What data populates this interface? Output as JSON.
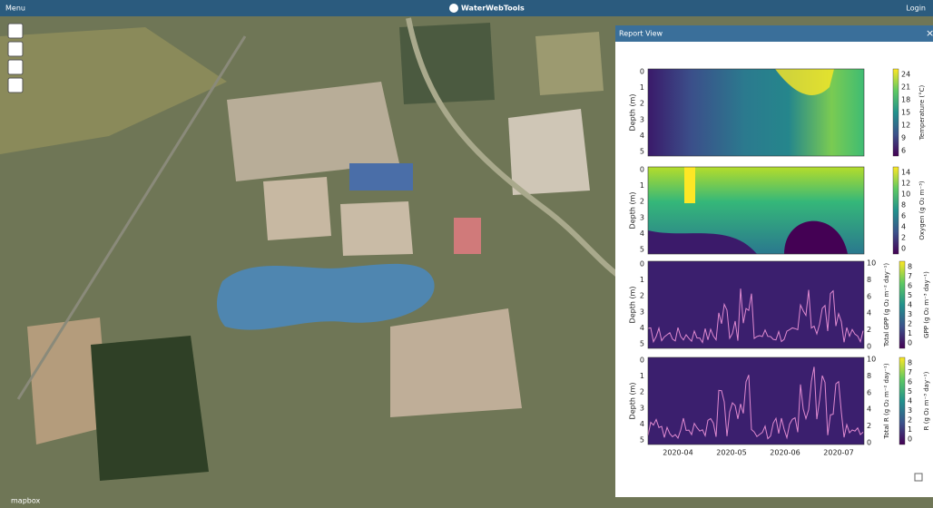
{
  "header": {
    "menu": "Menu",
    "brand": "WaterWebTools",
    "login": "Login"
  },
  "map": {
    "attribution": "mapbox"
  },
  "report": {
    "title": "Report View",
    "xticks": [
      "2020-04",
      "2020-05",
      "2020-06",
      "2020-07"
    ],
    "panels": [
      {
        "ylabel": "Depth (m)",
        "yticks": [
          0,
          1,
          2,
          3,
          4,
          5
        ],
        "colorbar_label": "Temperature (°C)",
        "colorbar_ticks": [
          6,
          9,
          12,
          15,
          18,
          21,
          24
        ]
      },
      {
        "ylabel": "Depth (m)",
        "yticks": [
          0,
          1,
          2,
          3,
          4,
          5
        ],
        "colorbar_label": "Oxygen (g O₂ m⁻³)",
        "colorbar_ticks": [
          0,
          2,
          4,
          6,
          8,
          10,
          12,
          14
        ]
      },
      {
        "ylabel": "Depth (m)",
        "yticks": [
          0,
          1,
          2,
          3,
          4,
          5
        ],
        "right_label": "Total GPP (g O₂ m⁻² day⁻¹)",
        "right_ticks": [
          0,
          2,
          4,
          6,
          8,
          10
        ],
        "colorbar_label": "GPP (g O₂ m⁻³ day⁻¹)",
        "colorbar_ticks": [
          0,
          1,
          2,
          3,
          4,
          5,
          6,
          7,
          8
        ]
      },
      {
        "ylabel": "Depth (m)",
        "yticks": [
          0,
          1,
          2,
          3,
          4,
          5
        ],
        "right_label": "Total R (g O₂ m⁻² day⁻¹)",
        "right_ticks": [
          0,
          2,
          4,
          6,
          8,
          10
        ],
        "colorbar_label": "R (g O₂ m⁻³ day⁻¹)",
        "colorbar_ticks": [
          0,
          1,
          2,
          3,
          4,
          5,
          6,
          7,
          8
        ]
      }
    ]
  }
}
